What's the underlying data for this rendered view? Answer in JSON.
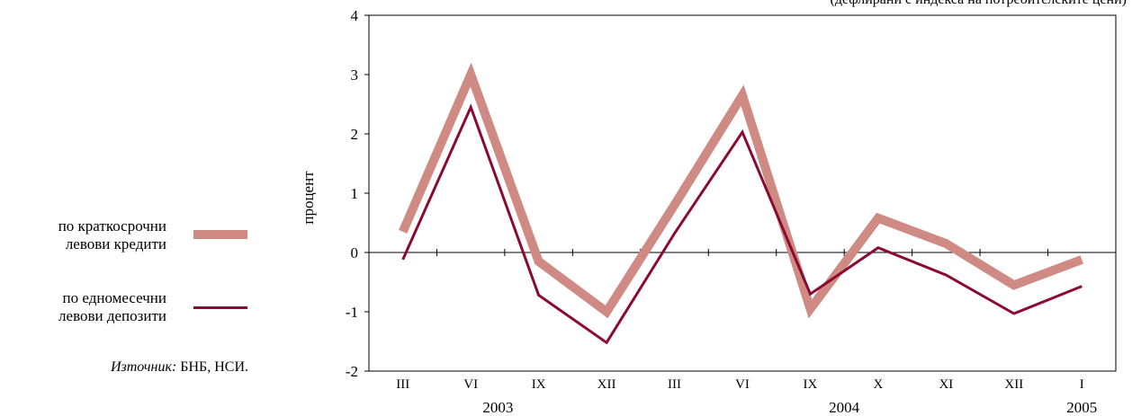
{
  "subtitle": "(дефлирани с индекса на потребителските цени)",
  "source": {
    "label": "Източник:",
    "text": "БНБ, НСИ."
  },
  "colors": {
    "credits": "#d08a84",
    "deposits": "#8b0a2f"
  },
  "chart_data": {
    "type": "line",
    "ylabel": "процент",
    "ylim": [
      -2,
      4
    ],
    "yticks": [
      -2,
      -1,
      0,
      1,
      2,
      3,
      4
    ],
    "categories": [
      "III",
      "VI",
      "IX",
      "XII",
      "III",
      "VI",
      "IX",
      "X",
      "XI",
      "XII",
      "I"
    ],
    "year_labels": [
      {
        "label": "2003",
        "category_index": 1.4
      },
      {
        "label": "2004",
        "category_index": 6.5
      },
      {
        "label": "2005",
        "category_index": 10
      }
    ],
    "series": [
      {
        "name": "по краткосрочни левови кредити",
        "values": [
          0.35,
          3.0,
          -0.15,
          -1.0,
          0.8,
          2.65,
          -0.95,
          0.58,
          0.15,
          -0.55,
          -0.12
        ]
      },
      {
        "name": "по едномесечни левови депозити",
        "values": [
          -0.12,
          2.45,
          -0.72,
          -1.52,
          0.32,
          2.03,
          -0.7,
          0.08,
          -0.38,
          -1.03,
          -0.57
        ]
      }
    ],
    "grid": false,
    "legend_position": "left"
  }
}
